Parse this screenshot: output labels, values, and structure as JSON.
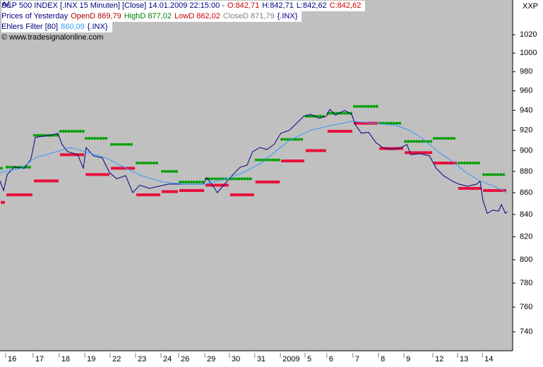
{
  "chart_data": {
    "type": "line",
    "log_y": true,
    "corner_label": "XXP",
    "legend_lines": [
      [
        {
          "text": "S&P 500 INDEX [.INX  15 Minuten] [Close] 14.01.2009 22:15:00 -",
          "color": "#000080"
        },
        {
          "text": "O:842,71",
          "color": "#cc0000"
        },
        {
          "text": "H:842,71",
          "color": "#000080"
        },
        {
          "text": "L:842,62",
          "color": "#000080"
        },
        {
          "text": "C:842,62",
          "color": "#cc0000"
        }
      ],
      [
        {
          "text": "Prices of Yesterday",
          "color": "#000080"
        },
        {
          "text": "OpenD 869,79",
          "color": "#b00000"
        },
        {
          "text": "HighD 877,02",
          "color": "#008000"
        },
        {
          "text": "LowD 862,02",
          "color": "#cc0000"
        },
        {
          "text": "CloseD 871,79",
          "color": "#808080"
        },
        {
          "text": "{.INX}",
          "color": "#000080"
        }
      ],
      [
        {
          "text": "Ehlers Filter [80]",
          "color": "#000080"
        },
        {
          "text": "860,09",
          "color": "#3399ff"
        },
        {
          "text": "{.INX}",
          "color": "#000080"
        }
      ],
      [
        {
          "text": "© www.tradesignalonline.com",
          "color": "#000000"
        }
      ]
    ],
    "xlim": [
      0,
      20
    ],
    "ylim": [
      725,
      1059
    ],
    "yticks": [
      740,
      760,
      780,
      800,
      820,
      840,
      860,
      880,
      900,
      920,
      940,
      960,
      980,
      1000,
      1020
    ],
    "yticks_labels": [
      {
        "value": 1020,
        "label": "1020"
      }
    ],
    "xticks": [
      {
        "value": 0.22,
        "label": "16"
      },
      {
        "value": 1.29,
        "label": "17"
      },
      {
        "value": 2.31,
        "label": "18"
      },
      {
        "value": 3.31,
        "label": "19"
      },
      {
        "value": 4.3,
        "label": "22"
      },
      {
        "value": 5.29,
        "label": "23"
      },
      {
        "value": 6.28,
        "label": "24"
      },
      {
        "value": 6.97,
        "label": "26"
      },
      {
        "value": 7.99,
        "label": "29"
      },
      {
        "value": 8.95,
        "label": "30"
      },
      {
        "value": 9.94,
        "label": "31"
      },
      {
        "value": 10.94,
        "label": "2009"
      },
      {
        "value": 11.9,
        "label": "5"
      },
      {
        "value": 12.75,
        "label": "6"
      },
      {
        "value": 13.77,
        "label": "7"
      },
      {
        "value": 14.77,
        "label": "8"
      },
      {
        "value": 15.76,
        "label": "9"
      },
      {
        "value": 16.89,
        "label": "12"
      },
      {
        "value": 17.85,
        "label": "13"
      },
      {
        "value": 18.82,
        "label": "14"
      }
    ],
    "sessions": [
      0,
      0.22,
      1.29,
      2.31,
      3.31,
      4.3,
      5.29,
      6.28,
      6.97,
      7.99,
      8.95,
      9.94,
      10.94,
      11.9,
      12.75,
      13.77,
      14.77,
      15.76,
      16.89,
      17.85,
      18.82,
      19.78
    ],
    "daily": [
      {
        "color": "#00a000",
        "style": "dots",
        "values": [
          883,
          884,
          915,
          919,
          912,
          906,
          888,
          880,
          870,
          873,
          873,
          891,
          911,
          934,
          937,
          944,
          927,
          909,
          912,
          888,
          877.02
        ]
      },
      {
        "color": "#e8103c",
        "style": "bar",
        "values": [
          851,
          858,
          871,
          896,
          877,
          883,
          858,
          861,
          862,
          867,
          858,
          870,
          890,
          900,
          919,
          927,
          902,
          898,
          888,
          864,
          862.02
        ]
      }
    ],
    "series": [
      {
        "color": "#000080",
        "x": [
          0,
          0.14,
          0.28,
          0.55,
          0.96,
          1.21,
          1.38,
          1.65,
          1.98,
          2.26,
          2.42,
          2.64,
          3.03,
          3.25,
          3.36,
          3.64,
          3.99,
          4.27,
          4.55,
          4.9,
          5.18,
          5.45,
          5.84,
          6.2,
          6.56,
          6.94,
          7.44,
          7.93,
          8.07,
          8.26,
          8.48,
          8.76,
          9.09,
          9.37,
          9.64,
          9.86,
          10.14,
          10.41,
          10.69,
          10.96,
          11.29,
          11.57,
          11.85,
          12.12,
          12.45,
          12.73,
          12.87,
          13.09,
          13.44,
          13.72,
          13.88,
          14.1,
          14.38,
          14.66,
          14.93,
          15.29,
          15.65,
          15.87,
          16.03,
          16.39,
          16.75,
          17.02,
          17.3,
          17.63,
          17.91,
          18.24,
          18.6,
          18.73,
          18.84,
          19.01,
          19.23,
          19.45,
          19.56,
          19.72,
          19.78
        ],
        "values": [
          871,
          862,
          877,
          884,
          883,
          892,
          913,
          914,
          915,
          917,
          906,
          899,
          896,
          883,
          903,
          895,
          893,
          879,
          873,
          876,
          860,
          867,
          864,
          866,
          868,
          868,
          868,
          868,
          874,
          868,
          860,
          868,
          877,
          884,
          886,
          899,
          903,
          901,
          906,
          917,
          920,
          927,
          934,
          936,
          932,
          934,
          941,
          935,
          940,
          936,
          925,
          917,
          918,
          908,
          903,
          901,
          903,
          906,
          896,
          897,
          895,
          883,
          876,
          871,
          868,
          866,
          868,
          871,
          853,
          841,
          844,
          843,
          849,
          841,
          842.62
        ]
      },
      {
        "color": "#3399ff",
        "x": [
          0,
          0.83,
          1.38,
          2.2,
          2.75,
          3.31,
          4.13,
          4.68,
          5.51,
          6.34,
          7.16,
          7.99,
          8.82,
          9.5,
          10.19,
          10.74,
          11.29,
          12.12,
          12.95,
          13.77,
          14.6,
          15.43,
          15.98,
          16.53,
          17.08,
          17.63,
          18.18,
          18.73,
          19.28,
          19.78
        ],
        "values": [
          879,
          883,
          893,
          899,
          903,
          899,
          893,
          886,
          876,
          870,
          868,
          868,
          873,
          879,
          888,
          899,
          910,
          920,
          925,
          929,
          927,
          925,
          920,
          911,
          899,
          890,
          879,
          871,
          866,
          860.09
        ]
      }
    ]
  }
}
